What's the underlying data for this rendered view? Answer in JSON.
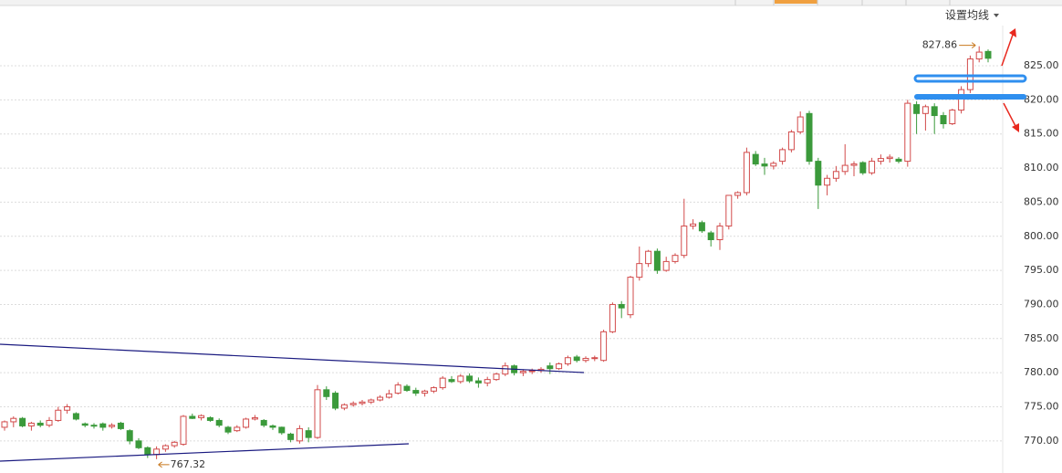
{
  "chart_data": {
    "type": "candlestick",
    "settings_button": "设置均线",
    "up_color": "#d24b4b",
    "down_color": "#3b9a3b",
    "marker_color": "#c8781e",
    "grid": true,
    "ylim": [
      765,
      831
    ],
    "yticks": [
      {
        "value": 770,
        "label": "770.00"
      },
      {
        "value": 775,
        "label": "775.00"
      },
      {
        "value": 780,
        "label": "780.00"
      },
      {
        "value": 785,
        "label": "785.00"
      },
      {
        "value": 790,
        "label": "790.00"
      },
      {
        "value": 795,
        "label": "795.00"
      },
      {
        "value": 800,
        "label": "800.00"
      },
      {
        "value": 805,
        "label": "805.00"
      },
      {
        "value": 810,
        "label": "810.00"
      },
      {
        "value": 815,
        "label": "815.00"
      },
      {
        "value": 820,
        "label": "820.00"
      },
      {
        "value": 825,
        "label": "825.00"
      }
    ],
    "open": [
      772,
      772.8,
      773.3,
      772.2,
      772.6,
      772.3,
      773,
      774.5,
      774,
      772.5,
      772.3,
      772.5,
      772.1,
      772.6,
      771.5,
      770,
      769,
      768,
      768.8,
      769.3,
      769.5,
      773.6,
      773.4,
      773.4,
      773,
      772,
      771.5,
      772,
      773.2,
      773,
      772.2,
      772,
      771,
      770,
      771.5,
      770.5,
      777.5,
      777,
      774.8,
      775.3,
      775.5,
      775.7,
      776,
      776.4,
      777,
      778,
      777.4,
      777,
      777.3,
      777.8,
      779,
      778.7,
      779.5,
      778.8,
      778.5,
      779,
      779.8,
      781,
      780,
      780.2,
      780.3,
      781,
      780.6,
      781.3,
      782.3,
      781.8,
      782.1,
      781.8,
      786,
      790,
      788.5,
      794,
      796,
      797.8,
      795,
      796.3,
      797.2,
      801.5,
      802,
      800.5,
      799.5,
      801.5,
      806,
      806.4,
      812,
      810.6,
      810.3,
      811,
      812.7,
      815.3,
      818,
      811,
      807.5,
      808.5,
      809.5,
      810.4,
      810.8,
      809.3,
      811,
      811.4,
      811.3,
      811,
      819.3,
      818,
      819,
      817.7,
      816.5,
      818.5,
      821.5,
      826,
      827.1
    ],
    "high": [
      773,
      773.6,
      773.5,
      772.8,
      773,
      773.5,
      775,
      775.4,
      774.2,
      772.7,
      772.6,
      772.7,
      772.6,
      772.8,
      771.7,
      770.4,
      769.2,
      769.2,
      769.5,
      770,
      773.8,
      774,
      773.9,
      773.6,
      773.3,
      772.2,
      772.3,
      773.4,
      773.8,
      773.2,
      772.4,
      772.1,
      771.2,
      772.3,
      772,
      778.2,
      778,
      777.3,
      775.5,
      775.8,
      776,
      776.2,
      776.7,
      777.5,
      778.6,
      778.3,
      777.8,
      777.5,
      778,
      779.5,
      779.5,
      779.8,
      779.9,
      779.3,
      779.4,
      780,
      781.5,
      781.2,
      780.5,
      780.6,
      780.8,
      781.5,
      781.5,
      782.5,
      782.6,
      782.4,
      782.5,
      786.3,
      790.3,
      790.5,
      794.2,
      798.5,
      798,
      798.2,
      797,
      797.5,
      805.5,
      802.5,
      802.3,
      800.8,
      802,
      806,
      806.6,
      813,
      812.5,
      811.5,
      811,
      813,
      815.6,
      818.3,
      818.4,
      811.5,
      809,
      810.3,
      813.5,
      811,
      811,
      811.5,
      812,
      812,
      811.6,
      820,
      819.8,
      819.3,
      819.5,
      818.2,
      818.7,
      822,
      826.5,
      827.86,
      827.4
    ],
    "low": [
      771.5,
      772,
      772,
      771.5,
      772,
      772,
      772.8,
      774,
      773,
      772,
      771.8,
      771.5,
      771.8,
      771.6,
      769.5,
      768.8,
      767.5,
      767.32,
      768.4,
      769,
      769.3,
      773.2,
      773,
      772.8,
      772,
      771,
      771.3,
      771.8,
      773,
      772,
      771.6,
      770.9,
      769.8,
      769.6,
      769.8,
      770.3,
      776,
      774.5,
      774.5,
      775,
      775.2,
      775.4,
      775.8,
      776.2,
      776.8,
      777.2,
      776.6,
      776.5,
      777,
      777.5,
      778.5,
      778.4,
      778.5,
      777.8,
      778,
      778.8,
      779.5,
      779.6,
      779.5,
      779.8,
      780,
      779.8,
      780.4,
      781,
      781.5,
      781.5,
      781.7,
      781.6,
      785.8,
      788,
      788,
      793.5,
      795.5,
      794.5,
      794.8,
      796,
      796.8,
      801,
      800.5,
      798.5,
      798,
      801,
      805.5,
      806,
      810.3,
      809,
      809.8,
      810.5,
      812.3,
      815,
      810.5,
      804,
      806,
      808,
      809,
      808.8,
      809,
      809,
      810.5,
      810.8,
      810.7,
      810.2,
      815,
      815.5,
      815,
      815.8,
      816.3,
      818,
      821,
      825.5,
      825.5
    ],
    "close": [
      772.8,
      773.3,
      772.2,
      772.6,
      772.3,
      773,
      774.5,
      775,
      773.2,
      772.3,
      772.2,
      772,
      772.3,
      771.8,
      770,
      769,
      768,
      768.8,
      769.3,
      769.8,
      773.6,
      773.3,
      773.7,
      773,
      772.3,
      771.3,
      772,
      773.2,
      773.4,
      772.3,
      772,
      771.2,
      770.2,
      771.8,
      770.5,
      777.5,
      776.5,
      774.8,
      775.3,
      775.5,
      775.7,
      776,
      776.4,
      776.9,
      778.2,
      777.4,
      777,
      777.3,
      777.8,
      779.2,
      778.7,
      779.5,
      778.8,
      778.5,
      779,
      779.8,
      781,
      780,
      780.2,
      780.3,
      780.5,
      780.6,
      781.3,
      782.2,
      781.8,
      782.1,
      782.2,
      786,
      790,
      789.5,
      794,
      796,
      797.8,
      795,
      796.3,
      797.2,
      801.5,
      801.8,
      800.8,
      799.5,
      801.5,
      806,
      806.4,
      812.3,
      810.6,
      810.3,
      810.7,
      812.7,
      815.3,
      817.5,
      811,
      807.5,
      808.5,
      809.5,
      810.4,
      810.6,
      809.3,
      811,
      811.4,
      811.6,
      811,
      819.5,
      818,
      819,
      817.7,
      816.5,
      818.5,
      821.5,
      826,
      827,
      826.1
    ]
  }
}
